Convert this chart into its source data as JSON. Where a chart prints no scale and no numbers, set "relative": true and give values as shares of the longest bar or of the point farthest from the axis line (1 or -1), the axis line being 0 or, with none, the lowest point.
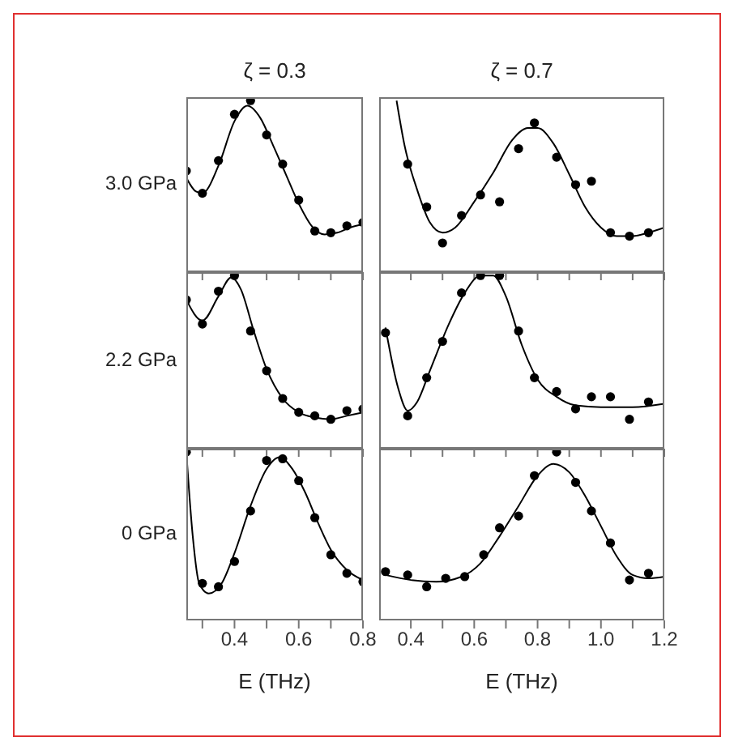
{
  "chart_data": [
    {
      "type": "line",
      "title": "ζ = 0.3",
      "ylabel": "3.0 GPa",
      "relative": true,
      "xlim": [
        0.25,
        0.8
      ],
      "xticks": [
        {
          "value": 0.3,
          "label": null
        },
        0.4,
        {
          "value": 0.5,
          "label": null
        },
        0.6,
        {
          "value": 0.7,
          "label": null
        },
        0.8
      ],
      "tick_labels": false,
      "series": [
        {
          "type": "scatter",
          "marker": "circle",
          "color": "#000000",
          "x": [
            0.25,
            0.3,
            0.35,
            0.4,
            0.45,
            0.5,
            0.55,
            0.6,
            0.65,
            0.7,
            0.75,
            0.8
          ],
          "values": [
            0.59,
            0.46,
            0.65,
            0.92,
            1,
            0.8,
            0.63,
            0.42,
            0.24,
            0.23,
            0.27,
            0.29
          ]
        },
        {
          "type": "line",
          "color": "#000000",
          "x": [
            0.25,
            0.28,
            0.3,
            0.35,
            0.4,
            0.44,
            0.48,
            0.52,
            0.56,
            0.6,
            0.64,
            0.68,
            0.72,
            0.76,
            0.8
          ],
          "values": [
            0.55,
            0.47,
            0.46,
            0.62,
            0.88,
            0.97,
            0.9,
            0.74,
            0.57,
            0.4,
            0.27,
            0.22,
            0.23,
            0.26,
            0.28
          ]
        }
      ]
    },
    {
      "type": "line",
      "title": "ζ = 0.7",
      "relative": true,
      "xlim": [
        0.3,
        1.2
      ],
      "xticks": [
        0.4,
        {
          "value": 0.5,
          "label": null
        },
        0.6,
        {
          "value": 0.7,
          "label": null
        },
        0.8,
        {
          "value": 0.9,
          "label": null
        },
        1.0,
        {
          "value": 1.1,
          "label": null
        },
        1.2
      ],
      "tick_labels": false,
      "series": [
        {
          "type": "scatter",
          "marker": "circle",
          "color": "#000000",
          "x": [
            0.39,
            0.45,
            0.5,
            0.56,
            0.62,
            0.68,
            0.74,
            0.79,
            0.86,
            0.92,
            0.97,
            1.03,
            1.09,
            1.15
          ],
          "values": [
            0.63,
            0.38,
            0.17,
            0.33,
            0.45,
            0.41,
            0.72,
            0.87,
            0.67,
            0.51,
            0.53,
            0.23,
            0.21,
            0.23
          ]
        },
        {
          "type": "line",
          "color": "#000000",
          "x": [
            0.355,
            0.38,
            0.42,
            0.46,
            0.5,
            0.54,
            0.6,
            0.66,
            0.72,
            0.77,
            0.8,
            0.85,
            0.9,
            0.95,
            1.0,
            1.05,
            1.1,
            1.15,
            1.2
          ],
          "values": [
            1,
            0.74,
            0.48,
            0.29,
            0.23,
            0.26,
            0.41,
            0.58,
            0.77,
            0.84,
            0.84,
            0.75,
            0.57,
            0.38,
            0.26,
            0.21,
            0.21,
            0.23,
            0.26
          ]
        }
      ]
    },
    {
      "type": "line",
      "ylabel": "2.2 GPa",
      "relative": true,
      "xlim": [
        0.25,
        0.8
      ],
      "xticks": [
        {
          "value": 0.3,
          "label": null
        },
        0.4,
        {
          "value": 0.5,
          "label": null
        },
        0.6,
        {
          "value": 0.7,
          "label": null
        },
        0.8
      ],
      "tick_labels": false,
      "series": [
        {
          "type": "scatter",
          "marker": "circle",
          "color": "#000000",
          "x": [
            0.25,
            0.3,
            0.35,
            0.4,
            0.45,
            0.5,
            0.55,
            0.6,
            0.65,
            0.7,
            0.75,
            0.8
          ],
          "values": [
            0.86,
            0.72,
            0.91,
            1,
            0.68,
            0.45,
            0.29,
            0.21,
            0.19,
            0.17,
            0.22,
            0.23
          ]
        },
        {
          "type": "line",
          "color": "#000000",
          "x": [
            0.25,
            0.3,
            0.35,
            0.39,
            0.42,
            0.46,
            0.5,
            0.55,
            0.6,
            0.65,
            0.7,
            0.75,
            0.8
          ],
          "values": [
            0.86,
            0.74,
            0.88,
            0.99,
            0.92,
            0.68,
            0.46,
            0.29,
            0.21,
            0.18,
            0.17,
            0.19,
            0.21
          ]
        }
      ]
    },
    {
      "type": "line",
      "relative": true,
      "xlim": [
        0.3,
        1.2
      ],
      "xticks": [
        0.4,
        {
          "value": 0.5,
          "label": null
        },
        0.6,
        {
          "value": 0.7,
          "label": null
        },
        0.8,
        {
          "value": 0.9,
          "label": null
        },
        1.0,
        {
          "value": 1.1,
          "label": null
        },
        1.2
      ],
      "tick_labels": false,
      "series": [
        {
          "type": "scatter",
          "marker": "circle",
          "color": "#000000",
          "x": [
            0.32,
            0.39,
            0.45,
            0.5,
            0.56,
            0.62,
            0.68,
            0.74,
            0.79,
            0.86,
            0.92,
            0.97,
            1.03,
            1.09,
            1.15
          ],
          "values": [
            0.67,
            0.19,
            0.41,
            0.62,
            0.9,
            1,
            1,
            0.68,
            0.41,
            0.33,
            0.23,
            0.3,
            0.3,
            0.17,
            0.27
          ]
        },
        {
          "type": "line",
          "color": "#000000",
          "x": [
            0.32,
            0.36,
            0.39,
            0.42,
            0.46,
            0.52,
            0.57,
            0.62,
            0.66,
            0.7,
            0.75,
            0.8,
            0.86,
            0.92,
            1.0,
            1.1,
            1.2
          ],
          "values": [
            0.7,
            0.35,
            0.22,
            0.27,
            0.45,
            0.72,
            0.9,
            1.0,
            1.0,
            0.88,
            0.6,
            0.4,
            0.3,
            0.25,
            0.24,
            0.24,
            0.26
          ]
        }
      ]
    },
    {
      "type": "line",
      "ylabel": "0 GPa",
      "xlabel": "E (THz)",
      "relative": true,
      "xlim": [
        0.25,
        0.8
      ],
      "xticks": [
        {
          "value": 0.3,
          "label": null
        },
        0.4,
        {
          "value": 0.5,
          "label": null
        },
        0.6,
        {
          "value": 0.7,
          "label": null
        },
        0.8
      ],
      "tick_labels": "x",
      "series": [
        {
          "type": "scatter",
          "marker": "circle",
          "color": "#000000",
          "x": [
            0.25,
            0.3,
            0.35,
            0.4,
            0.45,
            0.5,
            0.55,
            0.6,
            0.65,
            0.7,
            0.75,
            0.8
          ],
          "values": [
            1,
            0.22,
            0.2,
            0.35,
            0.65,
            0.95,
            0.96,
            0.83,
            0.61,
            0.39,
            0.28,
            0.23
          ]
        },
        {
          "type": "line",
          "color": "#000000",
          "x": [
            0.25,
            0.27,
            0.29,
            0.32,
            0.36,
            0.4,
            0.45,
            0.5,
            0.54,
            0.58,
            0.62,
            0.66,
            0.7,
            0.75,
            0.8
          ],
          "values": [
            1,
            0.5,
            0.22,
            0.16,
            0.22,
            0.4,
            0.68,
            0.9,
            0.97,
            0.9,
            0.76,
            0.58,
            0.42,
            0.3,
            0.24
          ]
        }
      ]
    },
    {
      "type": "line",
      "xlabel": "E (THz)",
      "relative": true,
      "xlim": [
        0.3,
        1.2
      ],
      "xticks": [
        0.4,
        {
          "value": 0.5,
          "label": null
        },
        0.6,
        {
          "value": 0.7,
          "label": null
        },
        0.8,
        {
          "value": 0.9,
          "label": null
        },
        {
          "value": 1,
          "label": "1.0"
        },
        {
          "value": 1.1,
          "label": null
        },
        1.2
      ],
      "tick_labels": "x",
      "series": [
        {
          "type": "scatter",
          "marker": "circle",
          "color": "#000000",
          "x": [
            0.32,
            0.39,
            0.45,
            0.51,
            0.57,
            0.63,
            0.68,
            0.74,
            0.79,
            0.86,
            0.92,
            0.97,
            1.03,
            1.09,
            1.15
          ],
          "values": [
            0.29,
            0.27,
            0.2,
            0.25,
            0.26,
            0.39,
            0.55,
            0.62,
            0.86,
            1,
            0.82,
            0.65,
            0.46,
            0.24,
            0.28
          ]
        },
        {
          "type": "line",
          "color": "#000000",
          "x": [
            0.32,
            0.4,
            0.48,
            0.56,
            0.62,
            0.68,
            0.74,
            0.8,
            0.85,
            0.9,
            0.95,
            1.0,
            1.05,
            1.1,
            1.15,
            1.2
          ],
          "values": [
            0.27,
            0.24,
            0.23,
            0.26,
            0.34,
            0.5,
            0.68,
            0.86,
            0.93,
            0.88,
            0.74,
            0.56,
            0.38,
            0.27,
            0.25,
            0.26
          ]
        }
      ]
    }
  ]
}
